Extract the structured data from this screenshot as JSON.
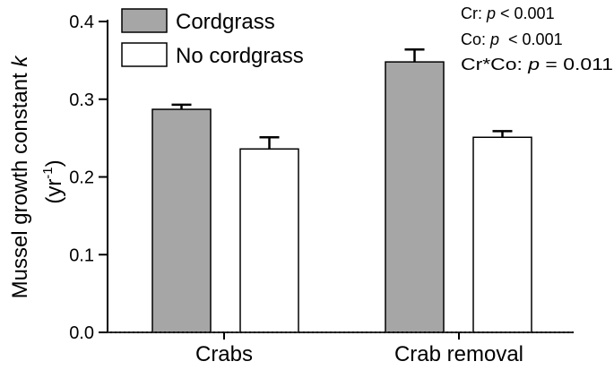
{
  "chart_data": {
    "type": "bar",
    "categories": [
      "Crabs",
      "Crab removal"
    ],
    "series": [
      {
        "name": "Cordgrass",
        "values": [
          0.287,
          0.348
        ],
        "errors": [
          0.006,
          0.016
        ],
        "color": "#a6a6a6"
      },
      {
        "name": "No cordgrass",
        "values": [
          0.236,
          0.251
        ],
        "errors": [
          0.015,
          0.008
        ],
        "color": "#ffffff"
      }
    ],
    "ylabel_line1_prefix": "Mussel growth constant ",
    "ylabel_line1_italic": "k",
    "ylabel_line2_open": "(yr",
    "ylabel_line2_sup": "-1",
    "ylabel_line2_close": ")",
    "ylim": [
      0,
      0.4
    ],
    "yticks": [
      "0.0",
      "0.1",
      "0.2",
      "0.3",
      "0.4"
    ],
    "ytick_values": [
      0,
      0.1,
      0.2,
      0.3,
      0.4
    ],
    "legend_position": "top-left",
    "grid": false,
    "annotations": [
      {
        "prefix": "Cr: ",
        "p": "p",
        "suffix": " < 0.001"
      },
      {
        "prefix": "Co: ",
        "p": "p",
        "suffix": "  < 0.001"
      },
      {
        "prefix": "Cr*Co: ",
        "p": "p",
        "suffix": " = 0.011"
      }
    ]
  }
}
